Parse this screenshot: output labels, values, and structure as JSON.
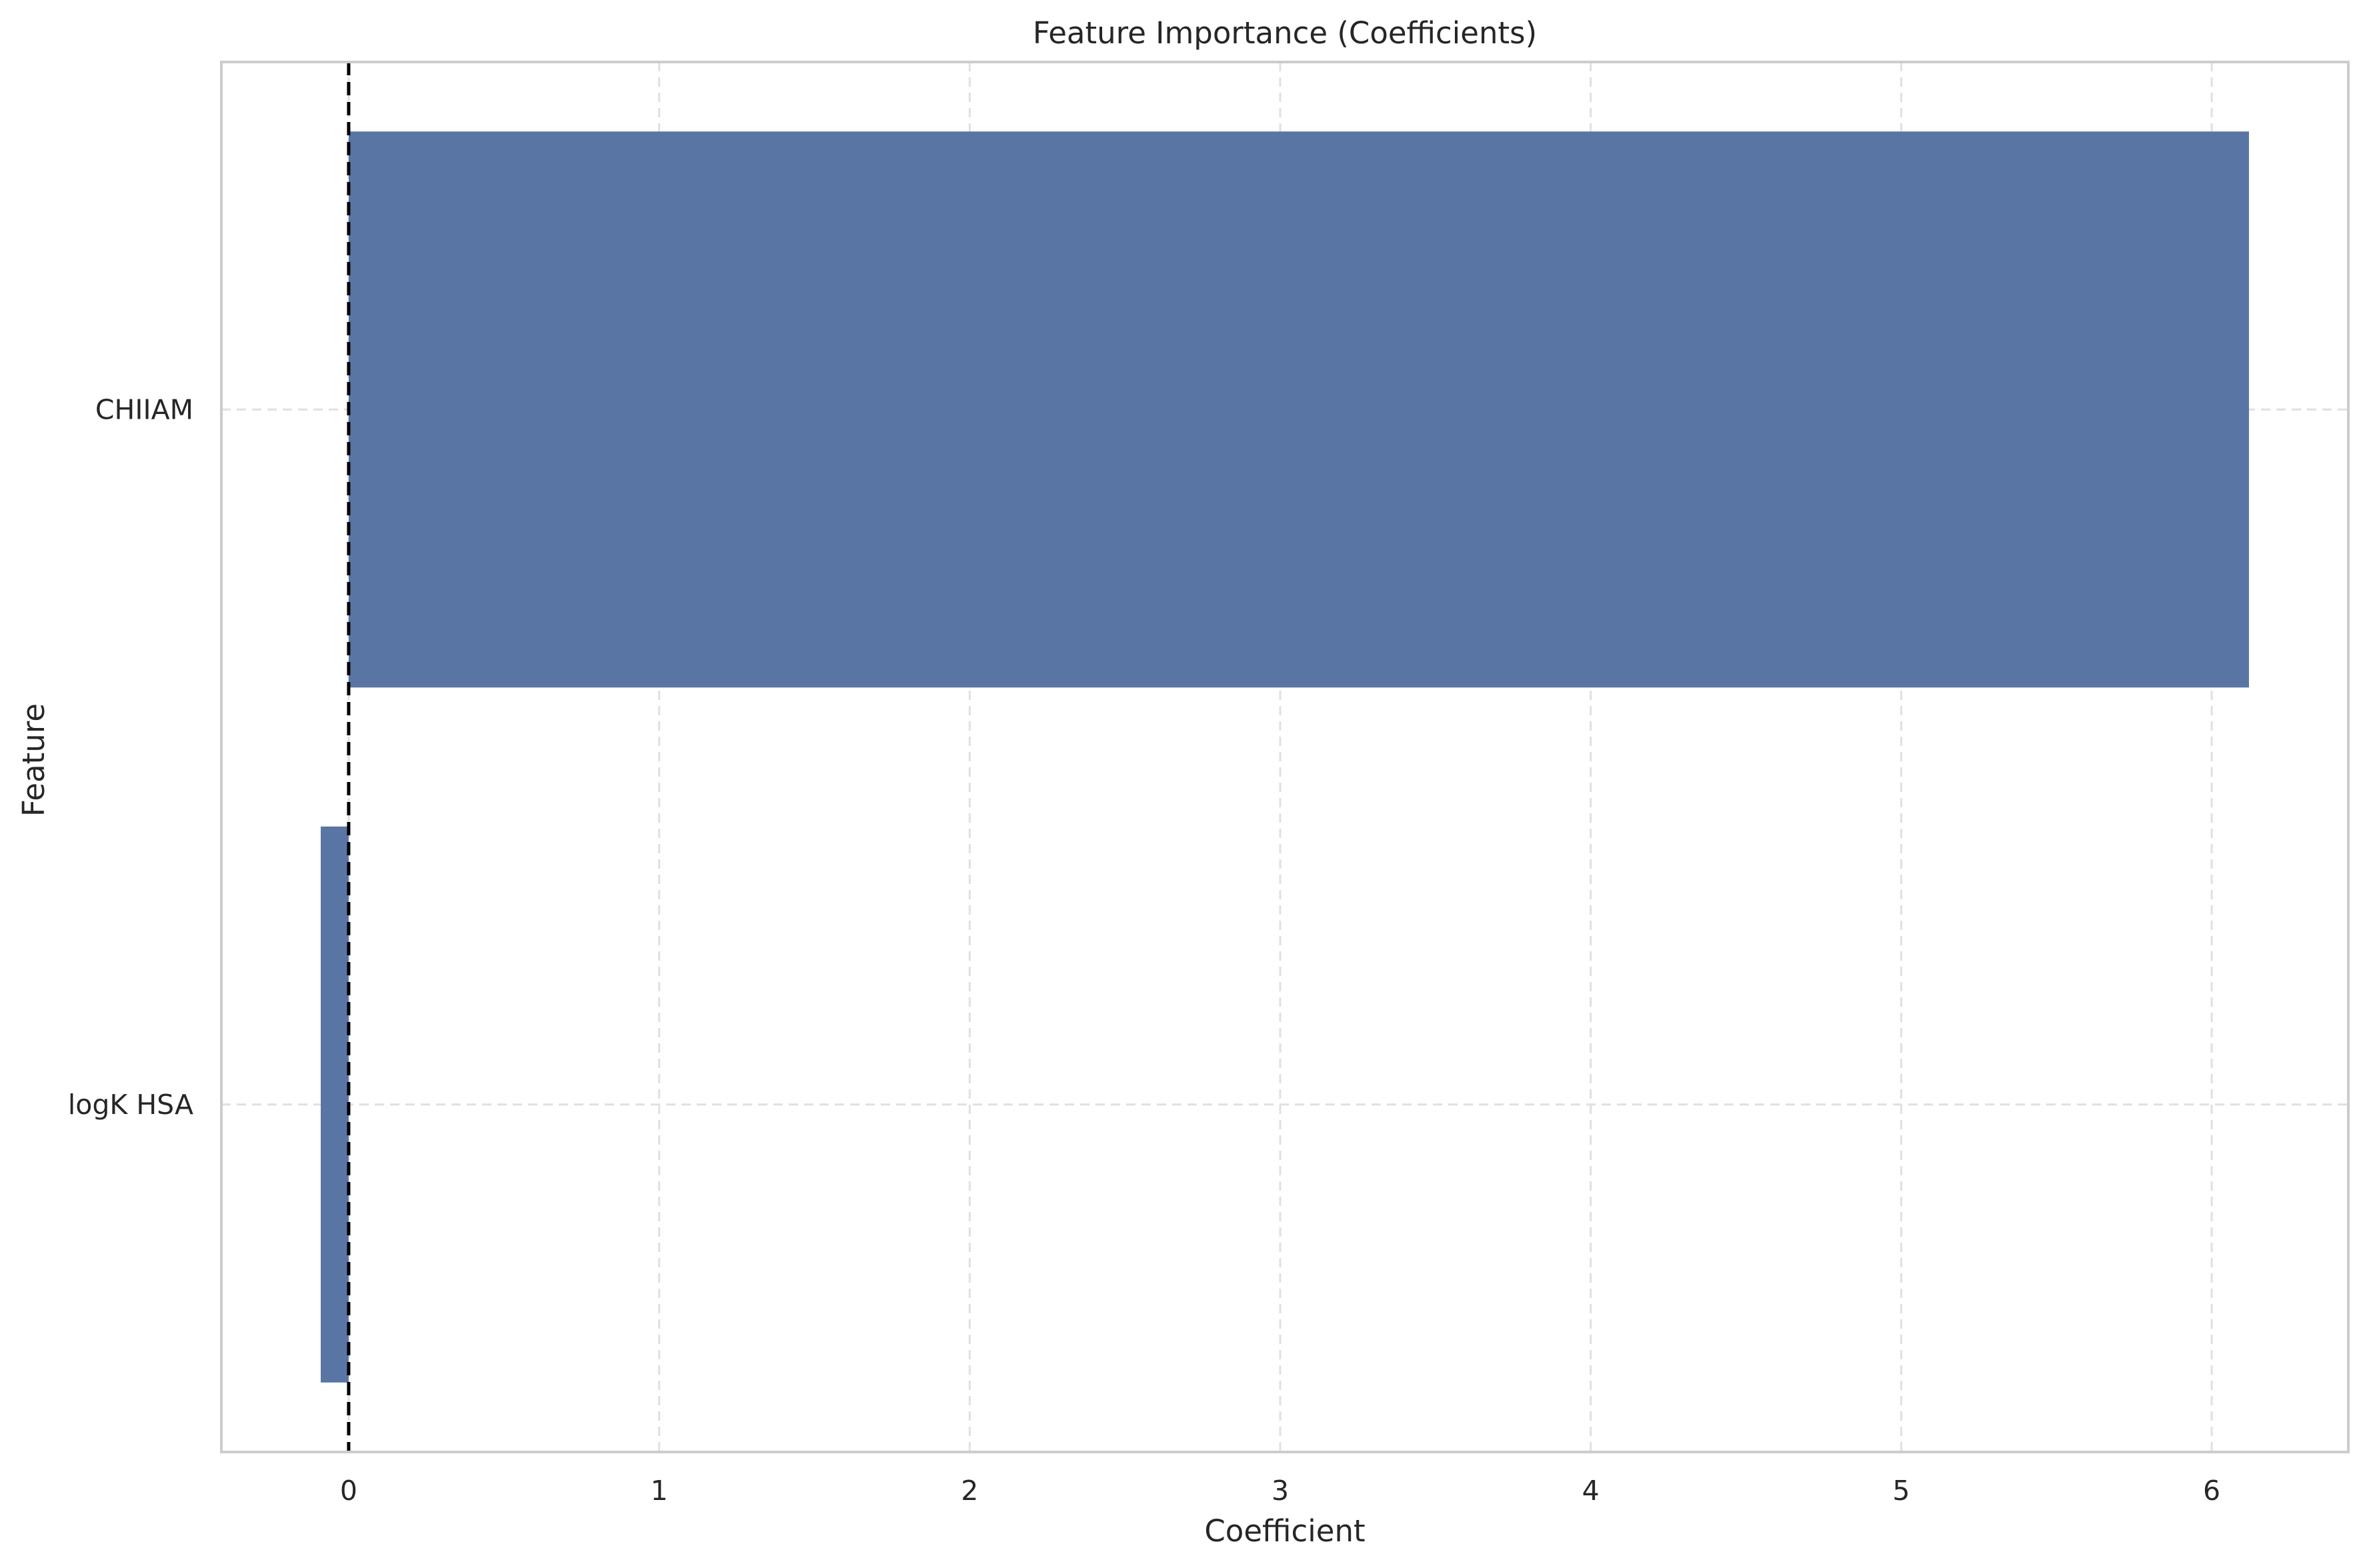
{
  "chart_data": {
    "type": "bar",
    "orientation": "horizontal",
    "title": "Feature Importance (Coefficients)",
    "xlabel": "Coefficient",
    "ylabel": "Feature",
    "categories": [
      "CHIIAM",
      "logK HSA"
    ],
    "values": [
      6.12,
      -0.09
    ],
    "xlim": [
      -0.41,
      6.44
    ],
    "xticks": [
      0,
      1,
      2,
      3,
      4,
      5,
      6
    ],
    "grid": true,
    "reference_line": {
      "x": 0,
      "style": "dashed",
      "color": "#000000"
    },
    "colors": {
      "bar": "#5975a4",
      "grid": "#e0e0e0",
      "axes": "#cccccc",
      "text": "#262626"
    }
  }
}
